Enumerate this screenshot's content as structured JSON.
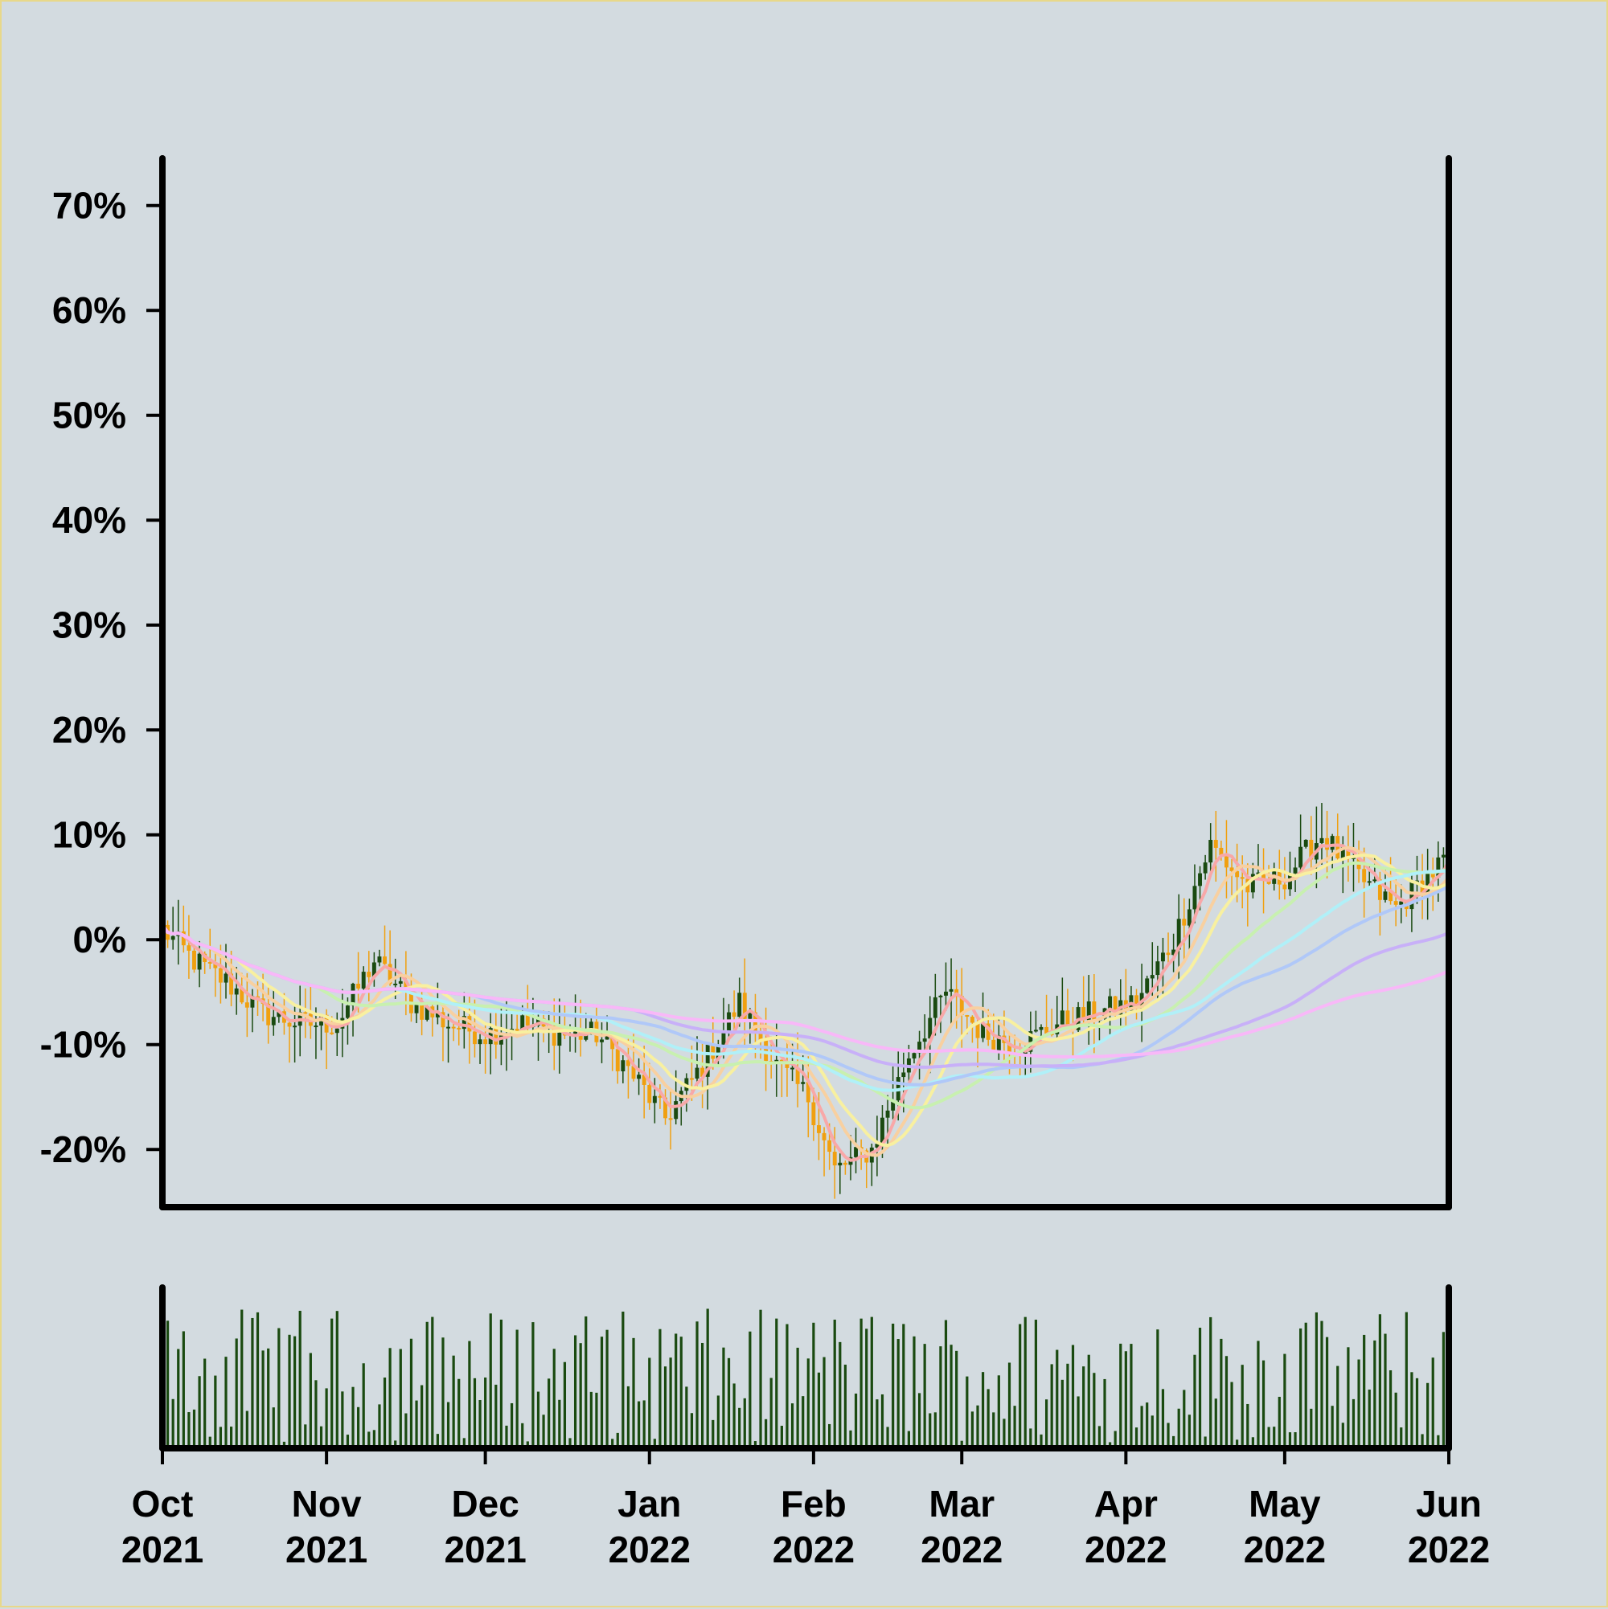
{
  "chart_data": {
    "type": "candlestick",
    "xlabels": [
      {
        "month": "Oct",
        "year": "2021"
      },
      {
        "month": "Nov",
        "year": "2021"
      },
      {
        "month": "Dec",
        "year": "2021"
      },
      {
        "month": "Jan",
        "year": "2022"
      },
      {
        "month": "Feb",
        "year": "2022"
      },
      {
        "month": "Mar",
        "year": "2022"
      },
      {
        "month": "Apr",
        "year": "2022"
      },
      {
        "month": "May",
        "year": "2022"
      },
      {
        "month": "Jun",
        "year": "2022"
      }
    ],
    "xlim": [
      "2021-10-01",
      "2022-06-01"
    ],
    "yticks": [
      "70%",
      "60%",
      "50%",
      "40%",
      "30%",
      "20%",
      "10%",
      "0%",
      "-10%",
      "-20%"
    ],
    "ytick_values": [
      70,
      60,
      50,
      40,
      30,
      20,
      10,
      0,
      -10,
      -20
    ],
    "ylim": [
      -25.5,
      74.5
    ],
    "colors": {
      "up": "#1a4a10",
      "down": "#f0a010",
      "volume": "#1a4a10",
      "background": "#d3dbe0",
      "axes": "#000000"
    },
    "close_anchors": [
      {
        "date": "2021-10-01",
        "close": 1
      },
      {
        "date": "2021-10-07",
        "close": -2
      },
      {
        "date": "2021-10-13",
        "close": -4
      },
      {
        "date": "2021-10-20",
        "close": -7
      },
      {
        "date": "2021-10-27",
        "close": -8
      },
      {
        "date": "2021-11-03",
        "close": -8
      },
      {
        "date": "2021-11-10",
        "close": -2
      },
      {
        "date": "2021-11-17",
        "close": -6
      },
      {
        "date": "2021-11-24",
        "close": -8
      },
      {
        "date": "2021-12-01",
        "close": -9
      },
      {
        "date": "2021-12-08",
        "close": -8
      },
      {
        "date": "2021-12-15",
        "close": -9
      },
      {
        "date": "2021-12-22",
        "close": -9
      },
      {
        "date": "2021-12-29",
        "close": -13
      },
      {
        "date": "2022-01-04",
        "close": -17
      },
      {
        "date": "2022-01-11",
        "close": -12
      },
      {
        "date": "2022-01-18",
        "close": -6
      },
      {
        "date": "2022-01-25",
        "close": -12
      },
      {
        "date": "2022-01-31",
        "close": -15
      },
      {
        "date": "2022-02-05",
        "close": -22
      },
      {
        "date": "2022-02-12",
        "close": -20
      },
      {
        "date": "2022-02-19",
        "close": -11
      },
      {
        "date": "2022-02-26",
        "close": -5
      },
      {
        "date": "2022-03-05",
        "close": -9
      },
      {
        "date": "2022-03-12",
        "close": -10
      },
      {
        "date": "2022-03-19",
        "close": -8
      },
      {
        "date": "2022-03-26",
        "close": -7
      },
      {
        "date": "2022-04-03",
        "close": -6
      },
      {
        "date": "2022-04-10",
        "close": 0
      },
      {
        "date": "2022-04-17",
        "close": 9
      },
      {
        "date": "2022-04-24",
        "close": 5
      },
      {
        "date": "2022-05-01",
        "close": 6
      },
      {
        "date": "2022-05-08",
        "close": 10
      },
      {
        "date": "2022-05-15",
        "close": 6
      },
      {
        "date": "2022-05-22",
        "close": 3
      },
      {
        "date": "2022-06-01",
        "close": 8
      }
    ],
    "moving_averages": [
      {
        "window": 5,
        "color": "#f8a8a8"
      },
      {
        "window": 10,
        "color": "#f8d0a0"
      },
      {
        "window": 15,
        "color": "#f8f0a0"
      },
      {
        "window": 30,
        "color": "#c8f0b0"
      },
      {
        "window": 45,
        "color": "#b0f0f8"
      },
      {
        "window": 60,
        "color": "#b0c8f8"
      },
      {
        "window": 90,
        "color": "#c8b0f8"
      },
      {
        "window": 120,
        "color": "#f8b8f8"
      }
    ],
    "volume_panel": true,
    "grid": false,
    "legend": "none"
  }
}
